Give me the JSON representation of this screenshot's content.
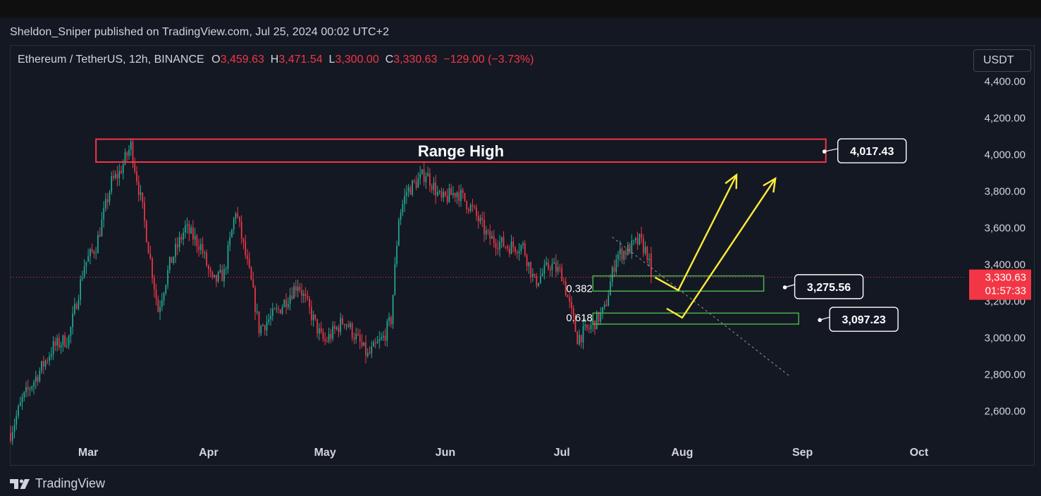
{
  "publisher": "Sheldon_Sniper published on TradingView.com, Jul 25, 2024 00:02 UTC+2",
  "legend": {
    "symbol": "Ethereum / TetherUS, 12h, BINANCE",
    "open_label": "O",
    "open": "3,459.63",
    "high_label": "H",
    "high": "3,471.54",
    "low_label": "L",
    "low": "3,300.00",
    "close_label": "C",
    "close": "3,330.63",
    "change": "−129.00 (−3.73%)"
  },
  "currency": "USDT",
  "footer": {
    "brand": "TradingView",
    "logo_icon": "tradingview-logo-icon"
  },
  "colors": {
    "up": "#22ab94",
    "down": "#f23645",
    "annotation_red": "#f23645",
    "fib_green": "#4caf50",
    "arrow_yellow": "#ffeb3b",
    "background": "#141823"
  },
  "chart_data": {
    "type": "candlestick",
    "symbol": "ETHUSDT",
    "interval": "12h",
    "x_ticks": [
      "Mar",
      "Apr",
      "May",
      "Jun",
      "Jul",
      "Aug",
      "Sep",
      "Oct"
    ],
    "x_tick_dates": [
      "2024-03-01",
      "2024-04-01",
      "2024-05-01",
      "2024-06-01",
      "2024-07-01",
      "2024-08-01",
      "2024-09-01",
      "2024-10-01"
    ],
    "x_range": [
      "2024-02-10",
      "2024-10-13"
    ],
    "y_ticks": [
      "4,400.00",
      "4,200.00",
      "4,000.00",
      "3,800.00",
      "3,600.00",
      "3,400.00",
      "3,200.00",
      "3,000.00",
      "2,800.00",
      "2,600.00"
    ],
    "y_tick_values": [
      4400,
      4200,
      4000,
      3800,
      3600,
      3400,
      3200,
      3000,
      2800,
      2600
    ],
    "ylim": [
      2440,
      4595
    ],
    "last_price": {
      "value": 3330.63,
      "label": "3,330.63",
      "countdown": "01:57:33"
    },
    "series": [
      {
        "date": "2024-02-10",
        "close": 2480
      },
      {
        "date": "2024-02-13",
        "close": 2660
      },
      {
        "date": "2024-02-17",
        "close": 2800
      },
      {
        "date": "2024-02-21",
        "close": 2950
      },
      {
        "date": "2024-02-25",
        "close": 3000
      },
      {
        "date": "2024-02-29",
        "close": 3400
      },
      {
        "date": "2024-03-03",
        "close": 3500
      },
      {
        "date": "2024-03-07",
        "close": 3850
      },
      {
        "date": "2024-03-09",
        "close": 3900
      },
      {
        "date": "2024-03-12",
        "close": 4050
      },
      {
        "date": "2024-03-15",
        "close": 3700
      },
      {
        "date": "2024-03-19",
        "close": 3150
      },
      {
        "date": "2024-03-22",
        "close": 3400
      },
      {
        "date": "2024-03-26",
        "close": 3600
      },
      {
        "date": "2024-03-30",
        "close": 3500
      },
      {
        "date": "2024-04-02",
        "close": 3300
      },
      {
        "date": "2024-04-05",
        "close": 3350
      },
      {
        "date": "2024-04-08",
        "close": 3700
      },
      {
        "date": "2024-04-12",
        "close": 3300
      },
      {
        "date": "2024-04-14",
        "close": 3050
      },
      {
        "date": "2024-04-19",
        "close": 3150
      },
      {
        "date": "2024-04-24",
        "close": 3300
      },
      {
        "date": "2024-04-30",
        "close": 3000
      },
      {
        "date": "2024-05-01",
        "close": 2980
      },
      {
        "date": "2024-05-06",
        "close": 3100
      },
      {
        "date": "2024-05-12",
        "close": 2900
      },
      {
        "date": "2024-05-16",
        "close": 3000
      },
      {
        "date": "2024-05-18",
        "close": 3100
      },
      {
        "date": "2024-05-20",
        "close": 3660
      },
      {
        "date": "2024-05-22",
        "close": 3800
      },
      {
        "date": "2024-05-27",
        "close": 3900
      },
      {
        "date": "2024-05-31",
        "close": 3750
      },
      {
        "date": "2024-06-04",
        "close": 3800
      },
      {
        "date": "2024-06-08",
        "close": 3700
      },
      {
        "date": "2024-06-12",
        "close": 3550
      },
      {
        "date": "2024-06-17",
        "close": 3500
      },
      {
        "date": "2024-06-21",
        "close": 3500
      },
      {
        "date": "2024-06-24",
        "close": 3300
      },
      {
        "date": "2024-06-28",
        "close": 3400
      },
      {
        "date": "2024-07-01",
        "close": 3350
      },
      {
        "date": "2024-07-05",
        "close": 3000
      },
      {
        "date": "2024-07-08",
        "close": 3050
      },
      {
        "date": "2024-07-12",
        "close": 3150
      },
      {
        "date": "2024-07-15",
        "close": 3450
      },
      {
        "date": "2024-07-18",
        "close": 3480
      },
      {
        "date": "2024-07-21",
        "close": 3530
      },
      {
        "date": "2024-07-23",
        "close": 3460
      },
      {
        "date": "2024-07-24",
        "close": 3330
      }
    ],
    "annotations": {
      "range_high": {
        "label": "Range High",
        "price_label": "4,017.43",
        "price": 4017.43,
        "top": 4085,
        "bottom": 3960,
        "start": "2024-03-03",
        "end": "2024-09-07"
      },
      "fib_levels": [
        {
          "label": "0.382",
          "price_label": "3,275.56",
          "price": 3275.56,
          "top": 3338,
          "bottom": 3255,
          "start": "2024-07-09",
          "end": "2024-08-22"
        },
        {
          "label": "0.618",
          "price_label": "3,097.23",
          "price": 3097.23,
          "top": 3135,
          "bottom": 3075,
          "start": "2024-07-09",
          "end": "2024-08-31"
        }
      ],
      "projection_paths": [
        [
          {
            "date": "2024-07-25",
            "price": 3330
          },
          {
            "date": "2024-07-31",
            "price": 3260
          },
          {
            "date": "2024-08-15",
            "price": 3890
          }
        ],
        [
          {
            "date": "2024-07-28",
            "price": 3160
          },
          {
            "date": "2024-08-01",
            "price": 3110
          },
          {
            "date": "2024-08-25",
            "price": 3870
          }
        ]
      ],
      "trendline": [
        {
          "date": "2024-07-14",
          "price": 3550
        },
        {
          "date": "2024-08-29",
          "price": 2785
        }
      ]
    }
  }
}
